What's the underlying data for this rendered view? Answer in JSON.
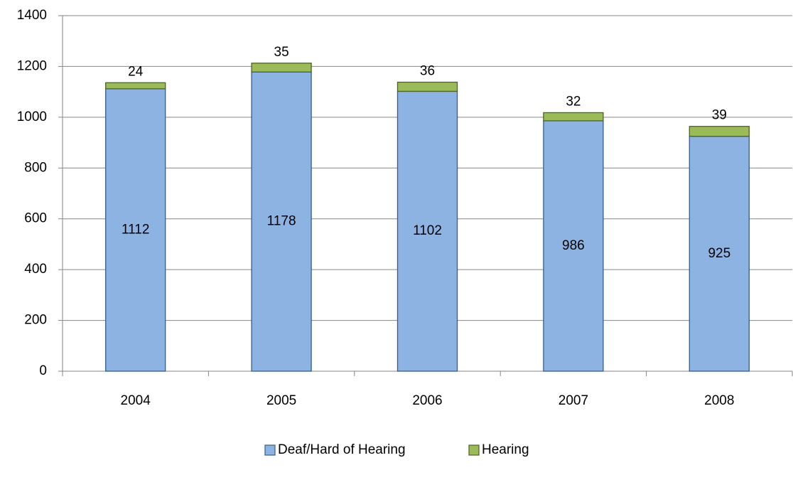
{
  "chart_data": {
    "type": "stacked_bar",
    "categories": [
      "2004",
      "2005",
      "2006",
      "2007",
      "2008"
    ],
    "series": [
      {
        "name": "Deaf/Hard of Hearing",
        "color": "#8db3e2",
        "values": [
          1112,
          1178,
          1102,
          986,
          925
        ]
      },
      {
        "name": "Hearing",
        "color": "#9bbb59",
        "values": [
          24,
          35,
          36,
          32,
          39
        ]
      }
    ],
    "ylim": [
      0,
      1400
    ],
    "yticks": [
      0,
      200,
      400,
      600,
      800,
      1000,
      1200,
      1400
    ],
    "grid": true,
    "legend": "bottom"
  }
}
